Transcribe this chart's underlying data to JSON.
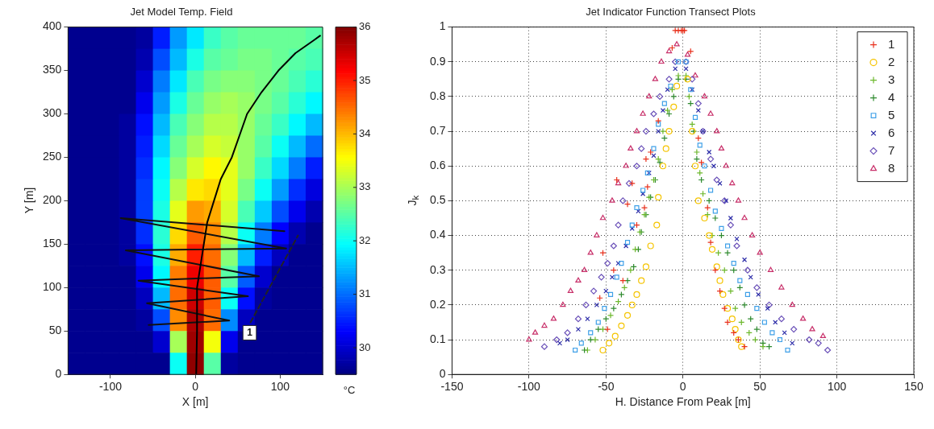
{
  "chart_data": [
    {
      "type": "heatmap",
      "title": "Jet Model Temp. Field",
      "xlabel": "X [m]",
      "ylabel": "Y [m]",
      "clabel": "°C",
      "xlim": [
        -150,
        150
      ],
      "ylim": [
        0,
        400
      ],
      "xticks": [
        -100,
        0,
        100
      ],
      "yticks": [
        0,
        50,
        100,
        150,
        200,
        250,
        300,
        350,
        400
      ],
      "clim": [
        29.5,
        36
      ],
      "cticks": [
        30,
        31,
        32,
        33,
        34,
        35,
        36
      ],
      "grid": false,
      "cells": [
        [
          29.6,
          29.6,
          29.6,
          29.6,
          29.7,
          30.5,
          31.3,
          31.8,
          32.3,
          32.5,
          32.6,
          32.6,
          32.6,
          32.6,
          32.5
        ],
        [
          29.6,
          29.6,
          29.6,
          29.6,
          29.8,
          30.8,
          31.5,
          32.1,
          32.5,
          32.6,
          32.7,
          32.7,
          32.6,
          32.5,
          32.4
        ],
        [
          29.6,
          29.6,
          29.6,
          29.6,
          30.0,
          31.1,
          31.8,
          32.4,
          32.7,
          32.8,
          32.8,
          32.7,
          32.6,
          32.4,
          32.2
        ],
        [
          29.6,
          29.6,
          29.6,
          29.6,
          30.2,
          31.3,
          32.1,
          32.6,
          32.9,
          33.0,
          32.9,
          32.7,
          32.5,
          32.2,
          31.9
        ],
        [
          29.6,
          29.6,
          29.6,
          29.7,
          30.4,
          31.5,
          32.4,
          32.8,
          33.1,
          33.1,
          32.9,
          32.6,
          32.3,
          31.9,
          31.5
        ],
        [
          29.6,
          29.6,
          29.6,
          29.7,
          30.5,
          31.7,
          32.6,
          33.0,
          33.3,
          33.2,
          32.9,
          32.5,
          32.0,
          31.5,
          31.0
        ],
        [
          29.6,
          29.6,
          29.6,
          29.7,
          30.6,
          31.9,
          32.8,
          33.3,
          33.6,
          33.4,
          32.9,
          32.3,
          31.7,
          31.1,
          30.5
        ],
        [
          29.6,
          29.6,
          29.6,
          29.7,
          30.7,
          32.0,
          33.1,
          33.7,
          33.8,
          33.4,
          32.7,
          32.0,
          31.3,
          30.6,
          30.1
        ],
        [
          29.6,
          29.6,
          29.6,
          29.7,
          30.7,
          32.1,
          33.4,
          34.2,
          34.1,
          33.3,
          32.4,
          31.6,
          30.8,
          30.2,
          29.8
        ],
        [
          29.6,
          29.6,
          29.6,
          29.7,
          30.6,
          32.2,
          33.8,
          34.6,
          34.3,
          33.1,
          32.0,
          31.1,
          30.3,
          29.8,
          29.6
        ],
        [
          29.6,
          29.6,
          29.6,
          29.7,
          30.4,
          32.1,
          34.1,
          35.0,
          34.5,
          32.8,
          31.5,
          30.5,
          29.9,
          29.6,
          29.6
        ],
        [
          29.6,
          29.6,
          29.6,
          29.6,
          30.2,
          31.9,
          34.4,
          35.3,
          34.6,
          32.5,
          30.9,
          30.0,
          29.6,
          29.6,
          29.6
        ],
        [
          29.6,
          29.6,
          29.6,
          29.6,
          29.9,
          31.5,
          34.5,
          35.5,
          34.6,
          32.0,
          30.4,
          29.7,
          29.6,
          29.6,
          29.6
        ],
        [
          29.6,
          29.6,
          29.6,
          29.6,
          29.7,
          30.8,
          34.3,
          35.7,
          34.5,
          31.2,
          29.9,
          29.6,
          29.6,
          29.6,
          29.6
        ],
        [
          29.6,
          29.6,
          29.6,
          29.6,
          29.6,
          30.0,
          33.0,
          35.8,
          33.5,
          30.2,
          29.6,
          29.6,
          29.6,
          29.6,
          29.6
        ],
        [
          29.6,
          29.6,
          29.6,
          29.6,
          29.6,
          29.6,
          32.0,
          35.9,
          32.5,
          29.7,
          29.6,
          29.6,
          29.6,
          29.6,
          29.6
        ]
      ],
      "series": [
        {
          "type": "line",
          "color": "#000000",
          "x": [
            1,
            2,
            2,
            10,
            14,
            22,
            30,
            43,
            52,
            61,
            78,
            98,
            118,
            140,
            147
          ],
          "values": [
            0,
            50,
            100,
            150,
            175,
            200,
            225,
            250,
            275,
            300,
            325,
            350,
            370,
            385,
            390
          ]
        },
        {
          "type": "line",
          "color": "#111111",
          "x": [
            -55,
            40,
            -57,
            62,
            -67,
            75,
            -82,
            107,
            -88,
            105
          ],
          "values": [
            57,
            62,
            82,
            90,
            108,
            113,
            143,
            145,
            180,
            165
          ]
        },
        {
          "type": "line",
          "color": "#222222",
          "line_style": "dashed",
          "x": [
            65,
            121
          ],
          "values": [
            60,
            160
          ]
        }
      ],
      "annotations": [
        {
          "text": "1",
          "x": 64,
          "y": 48
        }
      ]
    },
    {
      "type": "scatter",
      "title": "Jet Indicator Function Transect Plots",
      "xlabel": "H. Distance From Peak [m]",
      "ylabel": "J$_{k}$",
      "xlim": [
        -150,
        150
      ],
      "ylim": [
        0,
        1
      ],
      "xticks": [
        -150,
        -100,
        -50,
        0,
        50,
        100,
        150
      ],
      "yticks": [
        0,
        0.1,
        0.2,
        0.3,
        0.4,
        0.5,
        0.6,
        0.7,
        0.8,
        0.9,
        1
      ],
      "grid": true,
      "legend": "top right",
      "series": [
        {
          "name": "1",
          "color": "#e8301c",
          "marker": "cross",
          "x": [
            -5,
            -3,
            -1,
            0,
            1,
            -7,
            -16,
            -21,
            -24,
            -43,
            -33,
            -36,
            -23,
            -25,
            -30,
            -52,
            -45,
            -39,
            -54,
            -49,
            5,
            10,
            12,
            16,
            18,
            21,
            24,
            27,
            29,
            33,
            36,
            40
          ],
          "values": [
            0.99,
            0.99,
            0.99,
            0.99,
            0.99,
            0.94,
            0.73,
            0.64,
            0.62,
            0.56,
            0.55,
            0.49,
            0.54,
            0.48,
            0.43,
            0.35,
            0.3,
            0.27,
            0.22,
            0.13,
            0.93,
            0.68,
            0.61,
            0.48,
            0.38,
            0.3,
            0.24,
            0.19,
            0.15,
            0.12,
            0.1,
            0.08
          ]
        },
        {
          "name": "2",
          "color": "#f5c400",
          "marker": "circle",
          "x": [
            -52,
            -48,
            -44,
            -40,
            -36,
            -33,
            -30,
            -27,
            -24,
            -21,
            -17,
            -16,
            -13,
            -11,
            -9,
            -6,
            -4,
            3,
            6,
            8,
            10,
            14,
            17,
            19,
            22,
            24,
            26,
            29,
            32,
            34,
            36,
            38
          ],
          "values": [
            0.07,
            0.09,
            0.11,
            0.14,
            0.17,
            0.2,
            0.23,
            0.27,
            0.31,
            0.37,
            0.43,
            0.51,
            0.6,
            0.65,
            0.7,
            0.77,
            0.83,
            0.85,
            0.7,
            0.6,
            0.5,
            0.45,
            0.4,
            0.36,
            0.31,
            0.27,
            0.23,
            0.19,
            0.16,
            0.13,
            0.1,
            0.08
          ]
        },
        {
          "name": "3",
          "color": "#6cb82c",
          "marker": "cross",
          "x": [
            -62,
            -57,
            -52,
            -47,
            -42,
            -38,
            -34,
            -31,
            -28,
            -25,
            -22,
            -19,
            -16,
            -13,
            -10,
            -7,
            -3,
            2,
            4,
            6,
            9,
            11,
            13,
            16,
            19,
            23,
            27,
            31,
            34,
            38,
            43,
            47,
            52
          ],
          "values": [
            0.07,
            0.1,
            0.13,
            0.17,
            0.21,
            0.25,
            0.3,
            0.36,
            0.41,
            0.46,
            0.51,
            0.56,
            0.62,
            0.7,
            0.76,
            0.82,
            0.86,
            0.86,
            0.8,
            0.72,
            0.64,
            0.58,
            0.52,
            0.46,
            0.4,
            0.35,
            0.3,
            0.24,
            0.19,
            0.15,
            0.12,
            0.1,
            0.08
          ]
        },
        {
          "name": "4",
          "color": "#2e8a2e",
          "marker": "cross",
          "x": [
            -64,
            -60,
            -55,
            -50,
            -45,
            -40,
            -36,
            -32,
            -29,
            -27,
            -24,
            -21,
            -18,
            -15,
            -12,
            -9,
            -6,
            -3,
            2,
            5,
            7,
            9,
            12,
            17,
            21,
            25,
            29,
            33,
            37,
            40,
            44,
            48,
            52,
            56
          ],
          "values": [
            0.07,
            0.1,
            0.13,
            0.16,
            0.19,
            0.23,
            0.27,
            0.31,
            0.36,
            0.41,
            0.46,
            0.51,
            0.56,
            0.61,
            0.68,
            0.75,
            0.8,
            0.85,
            0.85,
            0.78,
            0.7,
            0.62,
            0.56,
            0.5,
            0.45,
            0.4,
            0.35,
            0.3,
            0.25,
            0.2,
            0.16,
            0.13,
            0.09,
            0.08
          ]
        },
        {
          "name": "5",
          "color": "#3fa0e8",
          "marker": "square",
          "x": [
            -70,
            -66,
            -60,
            -55,
            -51,
            -47,
            -43,
            -40,
            -36,
            -33,
            -30,
            -26,
            -23,
            -19,
            -16,
            -12,
            -8,
            -3,
            2,
            5,
            8,
            11,
            14,
            18,
            21,
            25,
            29,
            33,
            37,
            42,
            48,
            53,
            58,
            63,
            68
          ],
          "values": [
            0.07,
            0.09,
            0.12,
            0.15,
            0.19,
            0.23,
            0.28,
            0.32,
            0.38,
            0.43,
            0.48,
            0.53,
            0.58,
            0.65,
            0.72,
            0.78,
            0.83,
            0.9,
            0.9,
            0.82,
            0.74,
            0.66,
            0.6,
            0.53,
            0.47,
            0.42,
            0.37,
            0.32,
            0.27,
            0.23,
            0.19,
            0.15,
            0.12,
            0.1,
            0.07
          ]
        },
        {
          "name": "6",
          "color": "#2c2ca8",
          "marker": "x",
          "x": [
            -80,
            -75,
            -68,
            -62,
            -56,
            -50,
            -46,
            -42,
            -37,
            -33,
            -29,
            -26,
            -22,
            -19,
            -16,
            -13,
            -10,
            -5,
            2,
            6,
            10,
            13,
            17,
            20,
            24,
            28,
            31,
            35,
            40,
            44,
            49,
            55,
            60,
            66,
            71
          ],
          "values": [
            0.09,
            0.1,
            0.13,
            0.16,
            0.2,
            0.24,
            0.28,
            0.32,
            0.37,
            0.42,
            0.47,
            0.52,
            0.58,
            0.63,
            0.7,
            0.76,
            0.82,
            0.88,
            0.88,
            0.82,
            0.76,
            0.7,
            0.64,
            0.6,
            0.55,
            0.5,
            0.45,
            0.39,
            0.33,
            0.28,
            0.23,
            0.19,
            0.15,
            0.12,
            0.09
          ]
        },
        {
          "name": "7",
          "color": "#6a50b8",
          "marker": "diamond",
          "x": [
            -90,
            -82,
            -75,
            -68,
            -63,
            -58,
            -53,
            -49,
            -45,
            -42,
            -39,
            -35,
            -30,
            -27,
            -24,
            -19,
            -15,
            -9,
            -5,
            2,
            6,
            10,
            13,
            18,
            22,
            27,
            31,
            35,
            42,
            48,
            56,
            64,
            72,
            82,
            88,
            94
          ],
          "values": [
            0.08,
            0.1,
            0.12,
            0.16,
            0.2,
            0.24,
            0.28,
            0.32,
            0.37,
            0.43,
            0.5,
            0.55,
            0.6,
            0.65,
            0.7,
            0.75,
            0.8,
            0.85,
            0.9,
            0.9,
            0.85,
            0.78,
            0.7,
            0.62,
            0.56,
            0.5,
            0.43,
            0.37,
            0.3,
            0.25,
            0.2,
            0.16,
            0.13,
            0.1,
            0.09,
            0.07
          ]
        },
        {
          "name": "8",
          "color": "#c8306a",
          "marker": "triangle",
          "x": [
            -100,
            -96,
            -90,
            -84,
            -78,
            -73,
            -68,
            -64,
            -60,
            -56,
            -52,
            -46,
            -42,
            -37,
            -34,
            -30,
            -26,
            -22,
            -18,
            -14,
            -9,
            -4,
            3,
            8,
            14,
            18,
            22,
            25,
            28,
            32,
            36,
            40,
            45,
            50,
            57,
            64,
            71,
            78,
            84,
            91
          ],
          "values": [
            0.1,
            0.12,
            0.14,
            0.16,
            0.2,
            0.24,
            0.27,
            0.3,
            0.35,
            0.4,
            0.45,
            0.5,
            0.55,
            0.6,
            0.65,
            0.7,
            0.75,
            0.8,
            0.85,
            0.9,
            0.93,
            0.95,
            0.92,
            0.86,
            0.8,
            0.75,
            0.7,
            0.65,
            0.6,
            0.55,
            0.5,
            0.45,
            0.4,
            0.35,
            0.3,
            0.25,
            0.2,
            0.16,
            0.13,
            0.11
          ]
        }
      ]
    }
  ]
}
